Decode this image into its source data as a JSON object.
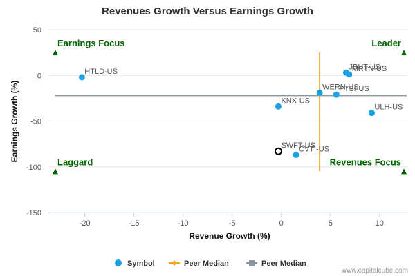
{
  "chart_data": {
    "type": "scatter",
    "title": "Revenues Growth Versus Earnings Growth",
    "xlabel": "Revenue Growth (%)",
    "ylabel": "Earnings Growth (%)",
    "xlim": [
      -23.7,
      12.9
    ],
    "ylim": [
      -150,
      50
    ],
    "x_ticks": [
      -20,
      -15,
      -10,
      -5,
      0,
      5,
      10
    ],
    "y_ticks": [
      50,
      0,
      -50,
      -100,
      -150
    ],
    "grid": "horizontal",
    "points": [
      {
        "label": "HTLD-US",
        "x": -20.3,
        "y": -2,
        "highlight": false
      },
      {
        "label": "JBHT-US",
        "x": 6.6,
        "y": 3,
        "highlight": false
      },
      {
        "label": "MRTN-US",
        "x": 6.9,
        "y": 1,
        "highlight": false
      },
      {
        "label": "WERN-US",
        "x": 3.9,
        "y": -19,
        "highlight": false
      },
      {
        "label": "PTSI-US",
        "x": 5.6,
        "y": -21,
        "highlight": false
      },
      {
        "label": "KNX-US",
        "x": -0.3,
        "y": -34,
        "highlight": false
      },
      {
        "label": "ULH-US",
        "x": 9.2,
        "y": -41,
        "highlight": false
      },
      {
        "label": "SWFT-US",
        "x": -0.3,
        "y": -83,
        "highlight": true
      },
      {
        "label": "CVTI-US",
        "x": 1.5,
        "y": -87,
        "highlight": false
      }
    ],
    "peer_median": {
      "x": 3.9,
      "y": -22
    },
    "quadrants": {
      "top_left": "Earnings Focus",
      "top_right": "Leader",
      "bottom_left": "Laggard",
      "bottom_right": "Revenues Focus"
    },
    "legend": {
      "placement": "bottom-center",
      "items": [
        "Symbol",
        "Peer Median",
        "Peer Median"
      ]
    },
    "colors": {
      "points": "#1ba1e2",
      "highlight_stroke": "#000000",
      "median_vertical": "#f5a623",
      "median_horizontal": "#8c96a0",
      "quadrant_text": "#006400",
      "grid": "#e6e6e6"
    }
  },
  "credit": "www.capitalcube.com"
}
